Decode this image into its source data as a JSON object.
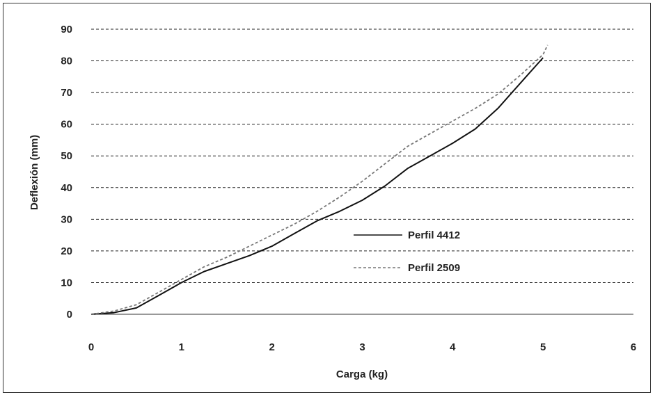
{
  "chart_data": {
    "type": "line",
    "xlabel": "Carga (kg)",
    "ylabel": "Deflexión (mm)",
    "xlim": [
      0,
      6
    ],
    "ylim": [
      0,
      90
    ],
    "x_ticks": [
      "0",
      "1",
      "2",
      "3",
      "4",
      "5",
      "6"
    ],
    "y_ticks": [
      "0",
      "10",
      "20",
      "30",
      "40",
      "50",
      "60",
      "70",
      "80",
      "90"
    ],
    "grid": "horizontal dashed",
    "legend_position": "center-right",
    "series": [
      {
        "name": "Perfil 4412",
        "style": "solid",
        "color": "#111111",
        "x": [
          0,
          0.25,
          0.5,
          0.75,
          1.0,
          1.25,
          1.5,
          1.75,
          2.0,
          2.25,
          2.5,
          2.75,
          3.0,
          3.25,
          3.5,
          3.75,
          4.0,
          4.25,
          4.5,
          4.75,
          5.0
        ],
        "y": [
          0,
          0.5,
          2,
          6,
          10,
          13.5,
          16,
          18.5,
          21.5,
          25.5,
          29.5,
          32.5,
          36,
          40.5,
          46,
          50,
          54,
          58.5,
          65,
          73,
          81
        ]
      },
      {
        "name": "Perfil 2509",
        "style": "dashed",
        "color": "#777777",
        "x": [
          0,
          0.25,
          0.5,
          0.75,
          1.0,
          1.25,
          1.5,
          1.75,
          2.0,
          2.25,
          2.5,
          2.75,
          3.0,
          3.25,
          3.5,
          3.75,
          4.0,
          4.25,
          4.5,
          4.75,
          5.0,
          5.05
        ],
        "y": [
          0,
          1,
          3,
          7,
          11,
          15,
          18,
          21.5,
          25,
          28.5,
          32.5,
          37,
          42,
          47.5,
          53,
          57,
          61,
          65,
          69.5,
          75.5,
          82,
          85
        ]
      }
    ]
  }
}
